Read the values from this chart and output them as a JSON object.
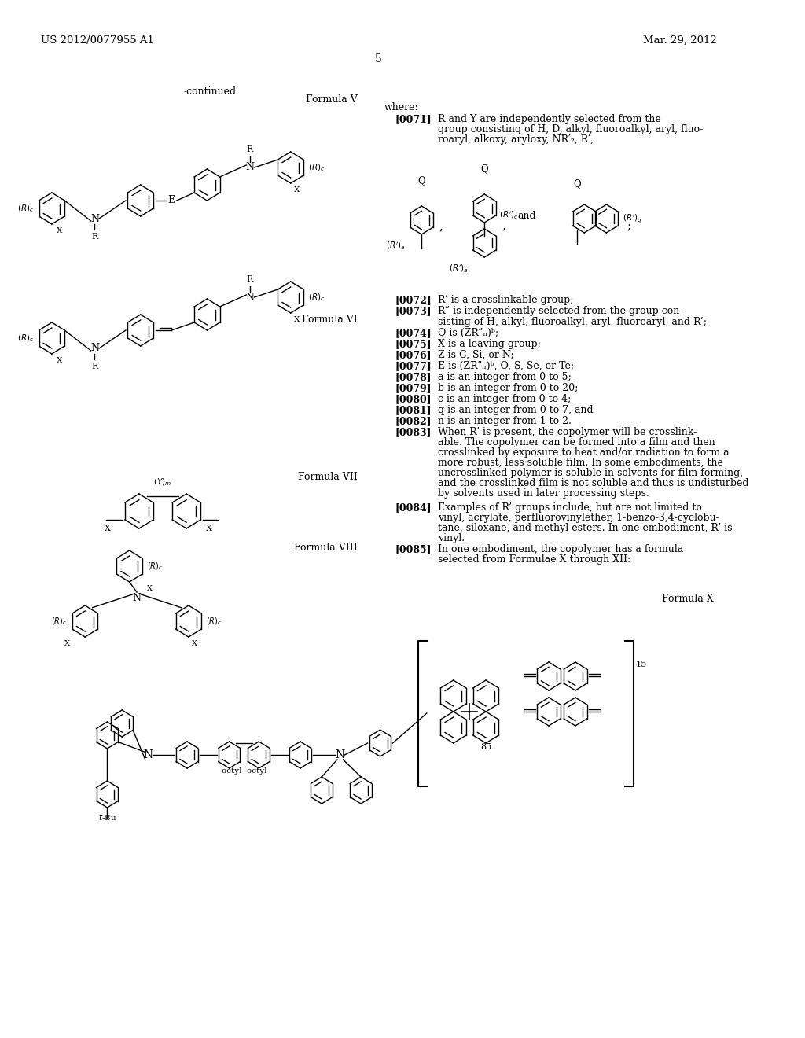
{
  "bg_color": "#ffffff",
  "header_left": "US 2012/0077955 A1",
  "header_right": "Mar. 29, 2012",
  "page_number": "5",
  "continued_text": "-continued",
  "formula_v_label": "Formula V",
  "formula_vi_label": "Formula VI",
  "formula_vii_label": "Formula VII",
  "formula_viii_label": "Formula VIII",
  "formula_x_label": "Formula X"
}
